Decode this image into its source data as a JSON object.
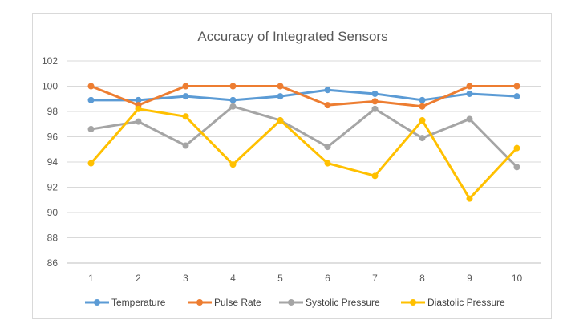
{
  "chart_data": {
    "type": "line",
    "title": "Accuracy of Integrated Sensors",
    "xlabel": "",
    "ylabel": "",
    "categories": [
      "1",
      "2",
      "3",
      "4",
      "5",
      "6",
      "7",
      "8",
      "9",
      "10"
    ],
    "ylim": [
      86,
      102
    ],
    "yticks": [
      86,
      88,
      90,
      92,
      94,
      96,
      98,
      100,
      102
    ],
    "yticks_label": [
      "86",
      "88",
      "90",
      "92",
      "94",
      "96",
      "98",
      "100",
      "102"
    ],
    "grid": true,
    "legend_position": "bottom",
    "series": [
      {
        "name": "Temperature",
        "color": "#5B9BD5",
        "values": [
          98.9,
          98.9,
          99.2,
          98.9,
          99.2,
          99.7,
          99.4,
          98.9,
          99.4,
          99.2
        ]
      },
      {
        "name": "Pulse Rate",
        "color": "#ED7D31",
        "values": [
          100,
          98.5,
          100,
          100,
          100,
          98.5,
          98.8,
          98.4,
          100,
          100
        ]
      },
      {
        "name": "Systolic Pressure",
        "color": "#A5A5A5",
        "values": [
          96.6,
          97.2,
          95.3,
          98.4,
          97.3,
          95.2,
          98.2,
          95.9,
          97.4,
          93.6
        ]
      },
      {
        "name": "Diastolic Pressure",
        "color": "#FFC000",
        "values": [
          93.9,
          98.2,
          97.6,
          93.8,
          97.3,
          93.9,
          92.9,
          97.3,
          91.1,
          95.1
        ]
      }
    ]
  }
}
